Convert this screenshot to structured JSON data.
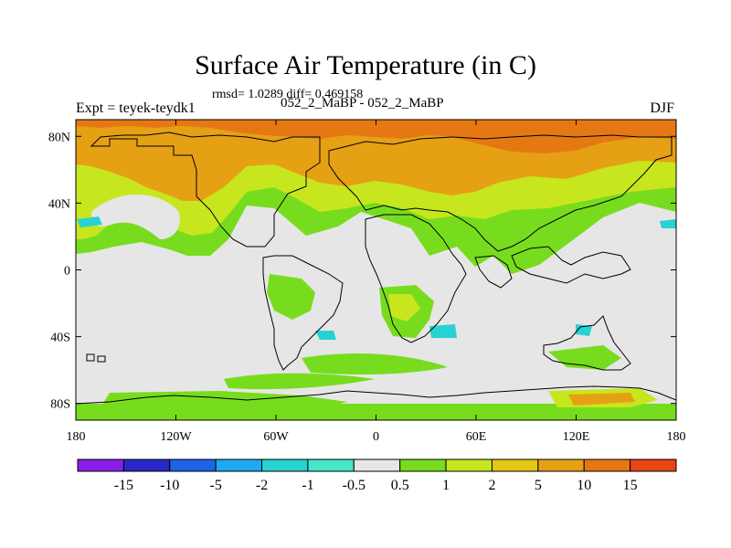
{
  "title": "Surface Air Temperature (in C)",
  "stats": "rmsd= 1.0289 diff= 0.469158",
  "expt_label": "Expt = teyek-teydk1",
  "run_label": "052_2_MaBP - 052_2_MaBP",
  "season": "DJF",
  "lon_ticks": [
    {
      "value": -180,
      "label": "180"
    },
    {
      "value": -120,
      "label": "120W"
    },
    {
      "value": -60,
      "label": "60W"
    },
    {
      "value": 0,
      "label": "0"
    },
    {
      "value": 60,
      "label": "60E"
    },
    {
      "value": 120,
      "label": "120E"
    },
    {
      "value": 180,
      "label": "180"
    }
  ],
  "lat_ticks": [
    {
      "value": 80,
      "label": "80N"
    },
    {
      "value": 40,
      "label": "40N"
    },
    {
      "value": 0,
      "label": "0"
    },
    {
      "value": -40,
      "label": "40S"
    },
    {
      "value": -80,
      "label": "80S"
    }
  ],
  "colorbar": {
    "colors": [
      "#8a1ee6",
      "#2828c8",
      "#1e64e6",
      "#1eaaf0",
      "#28d2d2",
      "#46e6c8",
      "#e6e6e6",
      "#78dc1e",
      "#c8e61e",
      "#e6c814",
      "#e6a014",
      "#e67814",
      "#e64614"
    ],
    "labels": [
      "-15",
      "-10",
      "-5",
      "-2",
      "-1",
      "-0.5",
      "0.5",
      "1",
      "2",
      "5",
      "10",
      "15"
    ]
  },
  "legend_colors": {
    "background": "#e6e6e6",
    "positive_small": "#78dc1e",
    "positive_mid": "#c8e61e",
    "positive_high": "#e6a014",
    "positive_highest": "#e67814",
    "negative_small": "#28d2d2"
  }
}
